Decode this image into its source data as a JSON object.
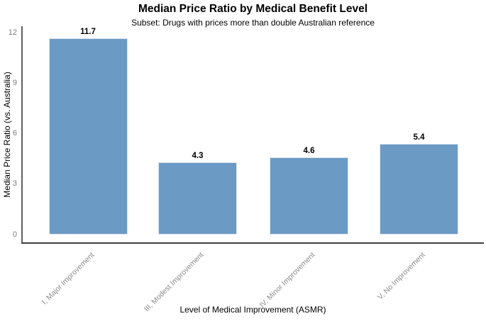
{
  "chart_data": {
    "type": "bar",
    "title": "Median Price Ratio by Medical Benefit Level",
    "subtitle": "Subset: Drugs with prices more than double Australian reference",
    "xlabel": "Level of Medical Improvement (ASMR)",
    "ylabel": "Median Price Ratio (vs. Australia)",
    "categories": [
      "I, Major Improvement",
      "III, Modest Improvement",
      "IV, Minor Improvement",
      "V, No Improvement"
    ],
    "values": [
      11.7,
      4.3,
      4.6,
      5.4
    ],
    "value_labels": [
      "11.7",
      "4.3",
      "4.6",
      "5.4"
    ],
    "yticks": [
      0,
      3,
      6,
      9,
      12
    ],
    "ylim": [
      0,
      12.4
    ],
    "grid": false,
    "legend_position": "none",
    "bar_color": "#6b9ac4",
    "bar_border_color": "#dde6ee",
    "axis_color": "#3f3f3f",
    "tick_label_color": "#7d7d7d",
    "category_label_color": "#8c8c8c"
  }
}
